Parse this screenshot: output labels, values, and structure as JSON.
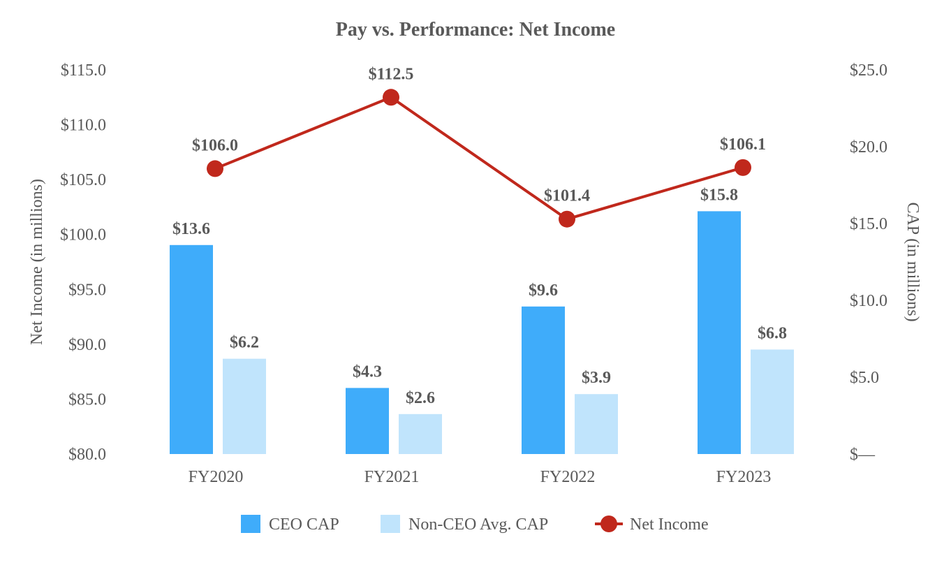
{
  "chart_data": {
    "type": "bar",
    "title": "Pay vs. Performance: Net Income",
    "categories": [
      "FY2020",
      "FY2021",
      "FY2022",
      "FY2023"
    ],
    "series": [
      {
        "name": "CEO CAP",
        "kind": "bar",
        "axis": "right",
        "color": "#3FACFA",
        "values": [
          13.6,
          4.3,
          9.6,
          15.8
        ],
        "labels": [
          "$13.6",
          "$4.3",
          "$9.6",
          "$15.8"
        ]
      },
      {
        "name": "Non-CEO Avg. CAP",
        "kind": "bar",
        "axis": "right",
        "color": "#C0E4FC",
        "values": [
          6.2,
          2.6,
          3.9,
          6.8
        ],
        "labels": [
          "$6.2",
          "$2.6",
          "$3.9",
          "$6.8"
        ]
      },
      {
        "name": "Net Income",
        "kind": "line",
        "axis": "left",
        "color": "#C0281C",
        "values": [
          106.0,
          112.5,
          101.4,
          106.1
        ],
        "labels": [
          "$106.0",
          "$112.5",
          "$101.4",
          "$106.1"
        ]
      }
    ],
    "left_axis": {
      "label": "Net Income (in millions)",
      "ylim": [
        80,
        115
      ],
      "ticks": [
        80,
        85,
        90,
        95,
        100,
        105,
        110,
        115
      ],
      "tick_labels": [
        "$80.0",
        "$85.0",
        "$90.0",
        "$95.0",
        "$100.0",
        "$105.0",
        "$110.0",
        "$115.0"
      ]
    },
    "right_axis": {
      "label": "CAP (in millions)",
      "ylim": [
        0,
        25
      ],
      "ticks": [
        0,
        5,
        10,
        15,
        20,
        25
      ],
      "tick_labels": [
        "$—",
        "$5.0",
        "$10.0",
        "$15.0",
        "$20.0",
        "$25.0"
      ]
    },
    "grid": false,
    "legend_position": "bottom"
  }
}
